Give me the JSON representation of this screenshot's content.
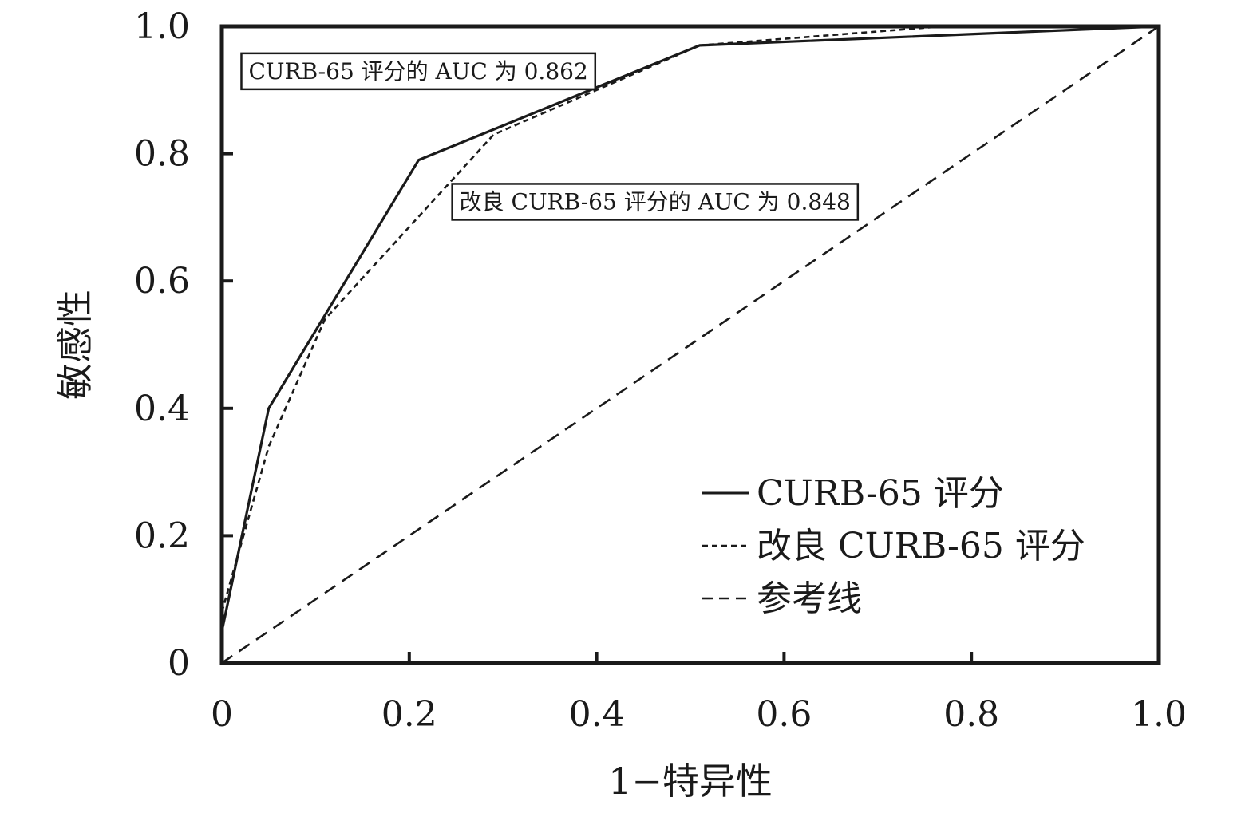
{
  "chart_data": {
    "type": "line",
    "xlabel": "1−特异性",
    "ylabel": "敏感性",
    "xlim": [
      0,
      1
    ],
    "ylim": [
      0,
      1
    ],
    "grid": false,
    "legend_position": "bottom-right",
    "x_ticks": [
      {
        "value": 0,
        "label": "0"
      },
      {
        "value": 0.2,
        "label": "0.2"
      },
      {
        "value": 0.4,
        "label": "0.4"
      },
      {
        "value": 0.6,
        "label": "0.6"
      },
      {
        "value": 0.8,
        "label": "0.8"
      },
      {
        "value": 1.0,
        "label": "1.0"
      }
    ],
    "y_ticks": [
      {
        "value": 0,
        "label": "0"
      },
      {
        "value": 0.2,
        "label": "0.2"
      },
      {
        "value": 0.4,
        "label": "0.4"
      },
      {
        "value": 0.6,
        "label": "0.6"
      },
      {
        "value": 0.8,
        "label": "0.8"
      },
      {
        "value": 1.0,
        "label": "1.0"
      }
    ],
    "series": [
      {
        "name": "CURB-65 评分",
        "style": "solid",
        "points": [
          [
            0,
            0.05
          ],
          [
            0.05,
            0.4
          ],
          [
            0.21,
            0.79
          ],
          [
            0.51,
            0.97
          ],
          [
            1.0,
            1.0
          ]
        ]
      },
      {
        "name": "改良 CURB-65 评分",
        "style": "dotted",
        "points": [
          [
            0,
            0.08
          ],
          [
            0.05,
            0.34
          ],
          [
            0.11,
            0.54
          ],
          [
            0.29,
            0.83
          ],
          [
            0.51,
            0.97
          ],
          [
            0.77,
            1.0
          ],
          [
            1.0,
            1.0
          ]
        ]
      },
      {
        "name": "参考线",
        "style": "dashed",
        "points": [
          [
            0,
            0
          ],
          [
            1.0,
            1.0
          ]
        ]
      }
    ],
    "annotations": [
      {
        "text": "CURB-65 评分的 AUC 为 0.862",
        "x": 0.02,
        "y": 0.93
      },
      {
        "text": "改良 CURB-65 评分的 AUC 为 0.848",
        "x": 0.245,
        "y": 0.725
      }
    ]
  }
}
